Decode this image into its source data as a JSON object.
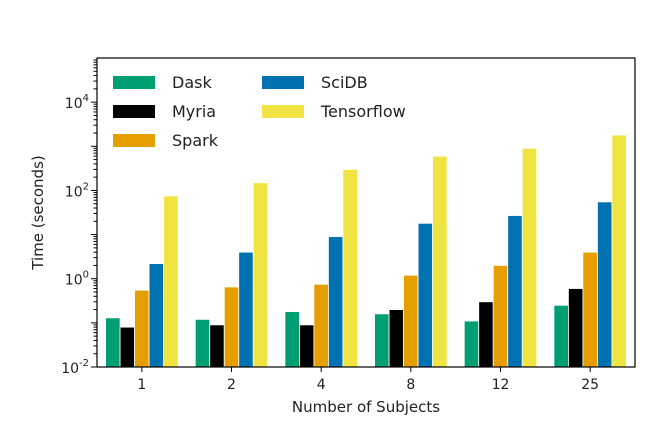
{
  "chart_data": {
    "type": "bar",
    "title": "",
    "xlabel": "Number of Subjects",
    "ylabel": "Time (seconds)",
    "y_scale": "log",
    "ylim": [
      0.01,
      100000
    ],
    "y_ticks": [
      {
        "value": 0.01,
        "base": "10",
        "exp": "-2"
      },
      {
        "value": 1,
        "base": "10",
        "exp": "0"
      },
      {
        "value": 100,
        "base": "10",
        "exp": "2"
      },
      {
        "value": 10000,
        "base": "10",
        "exp": "4"
      }
    ],
    "categories": [
      "1",
      "2",
      "4",
      "8",
      "12",
      "25"
    ],
    "series": [
      {
        "name": "Dask",
        "color": "#009e73",
        "values": [
          0.13,
          0.12,
          0.18,
          0.16,
          0.11,
          0.25
        ]
      },
      {
        "name": "Myria",
        "color": "#000000",
        "values": [
          0.08,
          0.09,
          0.09,
          0.2,
          0.3,
          0.6
        ]
      },
      {
        "name": "Spark",
        "color": "#e69f00",
        "values": [
          0.55,
          0.65,
          0.75,
          1.2,
          2.0,
          4.0
        ]
      },
      {
        "name": "SciDB",
        "color": "#0072b2",
        "values": [
          2.2,
          4.0,
          9.0,
          18.0,
          27.0,
          55.0
        ]
      },
      {
        "name": "Tensorflow",
        "color": "#f0e442",
        "values": [
          75,
          150,
          300,
          600,
          900,
          1800
        ]
      }
    ],
    "grid": false,
    "legend_position": "top-left"
  }
}
